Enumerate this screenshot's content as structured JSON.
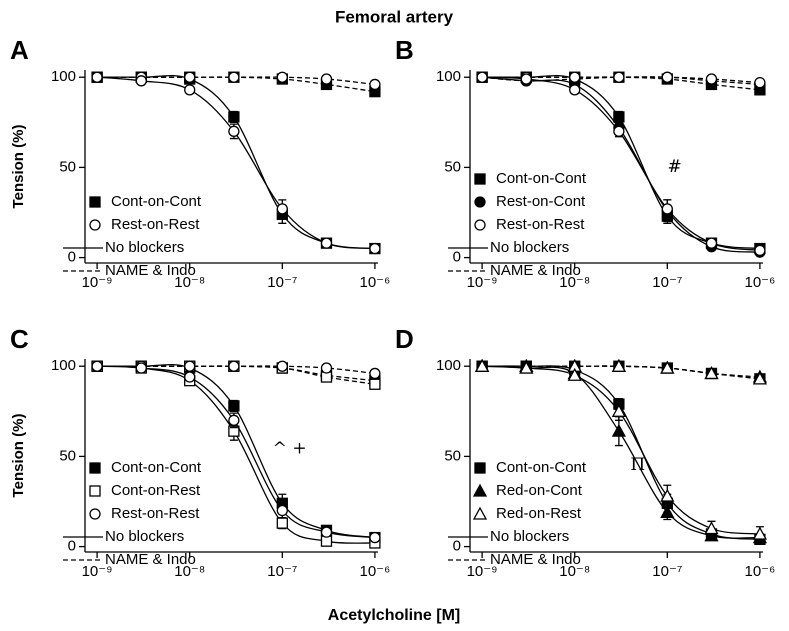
{
  "title": "Femoral artery",
  "xlabel": "Acetylcholine [M]",
  "chart_data": [
    {
      "type": "line",
      "label": "A",
      "ylabel": "Tension (%)",
      "xscale": "log",
      "x": [
        1e-09,
        3e-09,
        1e-08,
        3e-08,
        1e-07,
        3e-07,
        1e-06
      ],
      "xlim": [
        7.4e-10,
        1.08e-06
      ],
      "ylim": [
        -3,
        104
      ],
      "xticks": [
        {
          "value": 1e-09,
          "label": "10⁻⁹"
        },
        {
          "value": 1e-08,
          "label": "10⁻⁸"
        },
        {
          "value": 1e-07,
          "label": "10⁻⁷"
        },
        {
          "value": 1e-06,
          "label": "10⁻⁶"
        }
      ],
      "yticks": [
        0,
        50,
        100
      ],
      "line_styles": [
        {
          "name": "No blockers",
          "dash": "none"
        },
        {
          "name": "NAME & Indo",
          "dash": "5 3"
        }
      ],
      "series": [
        {
          "name": "Cont-on-Cont",
          "color": "#000000",
          "marker": "square",
          "filled": true,
          "values": [
            100,
            100,
            99,
            78,
            24,
            8,
            5
          ],
          "errors": [
            0,
            0,
            1,
            3,
            5,
            1,
            1
          ],
          "blocked_values": [
            100,
            100,
            100,
            100,
            99,
            96,
            92
          ]
        },
        {
          "name": "Rest-on-Rest",
          "color": "#000000",
          "marker": "circle",
          "filled": false,
          "values": [
            100,
            98,
            93,
            70,
            27,
            8,
            5
          ],
          "errors": [
            0,
            1,
            2,
            4,
            5,
            1,
            1
          ],
          "blocked_values": [
            100,
            100,
            100,
            100,
            100,
            99,
            96
          ]
        }
      ],
      "annotations": []
    },
    {
      "type": "line",
      "label": "B",
      "xscale": "log",
      "x": [
        1e-09,
        3e-09,
        1e-08,
        3e-08,
        1e-07,
        3e-07,
        1e-06
      ],
      "xlim": [
        7.4e-10,
        1.08e-06
      ],
      "ylim": [
        -3,
        104
      ],
      "xticks": [
        {
          "value": 1e-09,
          "label": "10⁻⁹"
        },
        {
          "value": 1e-08,
          "label": "10⁻⁸"
        },
        {
          "value": 1e-07,
          "label": "10⁻⁷"
        },
        {
          "value": 1e-06,
          "label": "10⁻⁶"
        }
      ],
      "yticks": [
        0,
        50,
        100
      ],
      "line_styles": [
        {
          "name": "No blockers",
          "dash": "none"
        },
        {
          "name": "NAME & Indo",
          "dash": "5 3"
        }
      ],
      "series": [
        {
          "name": "Cont-on-Cont",
          "color": "#000000",
          "marker": "square",
          "filled": true,
          "values": [
            100,
            100,
            99,
            78,
            23,
            8,
            5
          ],
          "errors": [
            0,
            0,
            1,
            3,
            4,
            1,
            1
          ],
          "blocked_values": [
            100,
            100,
            100,
            100,
            99,
            96,
            93
          ]
        },
        {
          "name": "Rest-on-Cont",
          "color": "#000000",
          "marker": "circle",
          "filled": true,
          "values": [
            100,
            98,
            96,
            72,
            26,
            6,
            3
          ],
          "errors": [
            0,
            1,
            1,
            3,
            6,
            1,
            1
          ],
          "blocked_values": [
            100,
            98,
            99,
            100,
            100,
            98,
            96
          ]
        },
        {
          "name": "Rest-on-Rest",
          "color": "#000000",
          "marker": "circle",
          "filled": false,
          "values": [
            100,
            99,
            93,
            70,
            27,
            8,
            4
          ],
          "errors": [
            0,
            1,
            2,
            3,
            5,
            1,
            1
          ],
          "blocked_values": [
            100,
            100,
            100,
            100,
            100,
            99,
            97
          ]
        }
      ],
      "annotations": [
        {
          "text": "#",
          "x": 1.2e-07,
          "y": 50
        }
      ]
    },
    {
      "type": "line",
      "label": "C",
      "ylabel": "Tension (%)",
      "xscale": "log",
      "x": [
        1e-09,
        3e-09,
        1e-08,
        3e-08,
        1e-07,
        3e-07,
        1e-06
      ],
      "xlim": [
        7.4e-10,
        1.08e-06
      ],
      "ylim": [
        -3,
        104
      ],
      "xticks": [
        {
          "value": 1e-09,
          "label": "10⁻⁹"
        },
        {
          "value": 1e-08,
          "label": "10⁻⁸"
        },
        {
          "value": 1e-07,
          "label": "10⁻⁷"
        },
        {
          "value": 1e-06,
          "label": "10⁻⁶"
        }
      ],
      "yticks": [
        0,
        50,
        100
      ],
      "line_styles": [
        {
          "name": "No blockers",
          "dash": "none"
        },
        {
          "name": "NAME & Indo",
          "dash": "5 3"
        }
      ],
      "series": [
        {
          "name": "Cont-on-Cont",
          "color": "#000000",
          "marker": "square",
          "filled": true,
          "values": [
            100,
            100,
            99,
            78,
            24,
            9,
            5
          ],
          "errors": [
            0,
            0,
            1,
            3,
            5,
            1,
            1
          ],
          "blocked_values": [
            100,
            100,
            100,
            100,
            99,
            95,
            92
          ]
        },
        {
          "name": "Cont-on-Rest",
          "color": "#000000",
          "marker": "square",
          "filled": false,
          "values": [
            100,
            99,
            92,
            64,
            13,
            3,
            2
          ],
          "errors": [
            0,
            1,
            2,
            5,
            3,
            1,
            1
          ],
          "blocked_values": [
            100,
            100,
            100,
            100,
            99,
            94,
            90
          ]
        },
        {
          "name": "Rest-on-Rest",
          "color": "#000000",
          "marker": "circle",
          "filled": false,
          "values": [
            100,
            99,
            94,
            70,
            20,
            8,
            5
          ],
          "errors": [
            0,
            1,
            2,
            4,
            4,
            1,
            1
          ],
          "blocked_values": [
            100,
            100,
            100,
            100,
            100,
            99,
            96
          ]
        }
      ],
      "annotations": [
        {
          "text": "^ +",
          "x": 1.2e-07,
          "y": 54
        }
      ]
    },
    {
      "type": "line",
      "label": "D",
      "xscale": "log",
      "x": [
        1e-09,
        3e-09,
        1e-08,
        3e-08,
        1e-07,
        3e-07,
        1e-06
      ],
      "xlim": [
        7.4e-10,
        1.08e-06
      ],
      "ylim": [
        -3,
        104
      ],
      "xticks": [
        {
          "value": 1e-09,
          "label": "10⁻⁹"
        },
        {
          "value": 1e-08,
          "label": "10⁻⁸"
        },
        {
          "value": 1e-07,
          "label": "10⁻⁷"
        },
        {
          "value": 1e-06,
          "label": "10⁻⁶"
        }
      ],
      "yticks": [
        0,
        50,
        100
      ],
      "line_styles": [
        {
          "name": "No blockers",
          "dash": "none"
        },
        {
          "name": "NAME & Indo",
          "dash": "5 3"
        }
      ],
      "series": [
        {
          "name": "Cont-on-Cont",
          "color": "#000000",
          "marker": "square",
          "filled": true,
          "values": [
            100,
            100,
            98,
            79,
            24,
            7,
            4
          ],
          "errors": [
            0,
            0,
            1,
            3,
            5,
            1,
            1
          ],
          "blocked_values": [
            100,
            100,
            100,
            100,
            99,
            96,
            93
          ]
        },
        {
          "name": "Red-on-Cont",
          "color": "#000000",
          "marker": "triangle",
          "filled": true,
          "values": [
            100,
            99,
            96,
            64,
            19,
            6,
            5
          ],
          "errors": [
            0,
            1,
            2,
            8,
            4,
            2,
            2
          ],
          "blocked_values": [
            100,
            100,
            100,
            100,
            99,
            96,
            94
          ]
        },
        {
          "name": "Red-on-Rest",
          "color": "#000000",
          "marker": "triangle",
          "filled": false,
          "values": [
            100,
            99,
            95,
            75,
            28,
            10,
            7
          ],
          "errors": [
            0,
            1,
            2,
            5,
            6,
            4,
            4
          ],
          "blocked_values": [
            100,
            100,
            100,
            100,
            99,
            96,
            93
          ]
        }
      ],
      "annotations": [
        {
          "text": "Π",
          "x": 4.8e-08,
          "y": 45
        }
      ]
    }
  ]
}
